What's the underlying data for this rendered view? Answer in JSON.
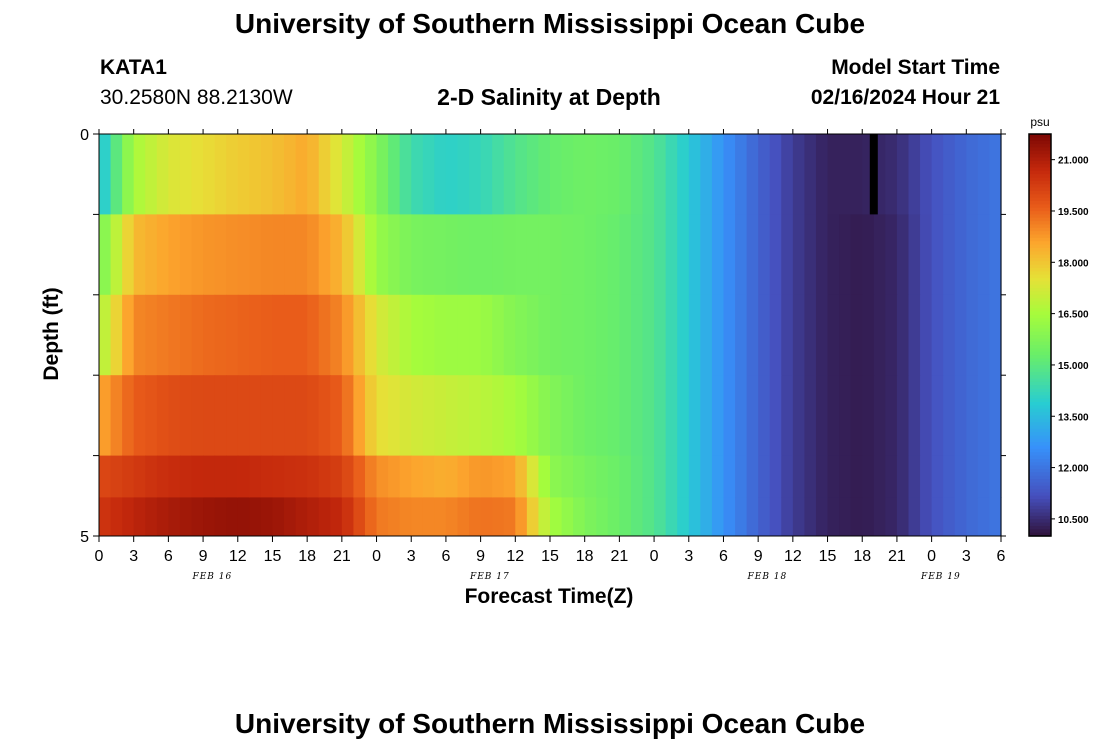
{
  "header": {
    "title": "University of Southern Mississippi Ocean Cube",
    "station": "KATA1",
    "coords": "30.2580N  88.2130W",
    "subtitle": "2-D Salinity at Depth",
    "model_start_label": "Model Start Time",
    "model_start_value": "02/16/2024 Hour 21",
    "footer_title": "University of Southern Mississippi Ocean Cube"
  },
  "chart_data": {
    "type": "heatmap",
    "title": "2-D Salinity at Depth",
    "xlabel": "Forecast Time(Z)",
    "ylabel": "Depth (ft)",
    "x_tick_labels": [
      "0",
      "3",
      "6",
      "9",
      "12",
      "15",
      "18",
      "21",
      "0",
      "3",
      "6",
      "9",
      "12",
      "15",
      "18",
      "21",
      "0",
      "3",
      "6",
      "9",
      "12",
      "15",
      "18",
      "21",
      "0",
      "3",
      "6"
    ],
    "date_labels": [
      "FEB 16",
      "FEB 17",
      "FEB 18",
      "FEB 19"
    ],
    "x_range_hours": [
      0,
      78
    ],
    "y_tick_labels": [
      "0",
      "5"
    ],
    "y_range_ft": [
      0,
      5
    ],
    "depth_rows": 5,
    "colorbar": {
      "unit": "psu",
      "min": 10.0,
      "max": 21.75,
      "tick_labels": [
        "21.000",
        "19.500",
        "18.000",
        "16.500",
        "15.000",
        "13.500",
        "12.000",
        "10.500"
      ],
      "tick_values": [
        21.0,
        19.5,
        18.0,
        16.5,
        15.0,
        13.5,
        12.0,
        10.5
      ]
    },
    "salinity_keyframes": {
      "hours": [
        0,
        3,
        6,
        9,
        12,
        15,
        18,
        21,
        24,
        27,
        30,
        33,
        36,
        39,
        42,
        45,
        48,
        51,
        54,
        57,
        60,
        63,
        66,
        69,
        72,
        75,
        78
      ],
      "rows": [
        [
          13.5,
          16.5,
          17.3,
          17.6,
          17.9,
          18.1,
          18.5,
          17.2,
          15.8,
          14.4,
          14.0,
          14.2,
          14.8,
          15.2,
          15.4,
          15.3,
          14.8,
          13.8,
          12.6,
          11.6,
          10.8,
          10.3,
          10.3,
          10.5,
          11.2,
          11.7,
          12.0
        ],
        [
          15.5,
          18.2,
          18.6,
          18.8,
          18.9,
          19.0,
          19.0,
          18.3,
          16.2,
          15.6,
          15.5,
          15.4,
          15.5,
          15.5,
          15.4,
          15.2,
          14.8,
          13.8,
          12.6,
          11.6,
          10.8,
          10.3,
          10.2,
          10.4,
          11.2,
          11.7,
          12.0
        ],
        [
          16.5,
          19.0,
          19.2,
          19.4,
          19.5,
          19.6,
          19.6,
          19.0,
          17.3,
          16.5,
          16.3,
          16.3,
          15.8,
          15.5,
          15.4,
          15.2,
          14.8,
          13.8,
          12.6,
          11.6,
          10.8,
          10.3,
          10.2,
          10.4,
          11.2,
          11.7,
          12.0
        ],
        [
          18.5,
          19.6,
          19.9,
          20.0,
          20.0,
          20.0,
          20.0,
          19.6,
          17.6,
          17.2,
          17.0,
          16.8,
          16.5,
          15.8,
          15.4,
          15.2,
          14.8,
          13.8,
          12.6,
          11.6,
          10.8,
          10.3,
          10.2,
          10.4,
          11.2,
          11.7,
          12.0
        ],
        [
          20.0,
          20.3,
          20.6,
          20.7,
          20.7,
          20.6,
          20.5,
          20.2,
          18.9,
          18.6,
          18.4,
          18.8,
          18.6,
          16.0,
          15.6,
          15.3,
          14.8,
          13.8,
          12.6,
          11.6,
          10.8,
          10.3,
          10.2,
          10.4,
          11.2,
          11.7,
          12.0
        ]
      ],
      "bottom_strip": [
        20.4,
        20.8,
        21.1,
        21.3,
        21.4,
        21.3,
        21.0,
        20.7,
        19.2,
        19.0,
        19.0,
        19.3,
        19.2,
        16.5,
        15.7,
        15.3,
        14.8,
        13.8,
        12.6,
        11.6,
        10.8,
        10.3,
        10.2,
        10.4,
        11.2,
        11.7,
        12.0
      ]
    },
    "marker": {
      "hour": 67,
      "row": 0,
      "color": "#000000"
    }
  }
}
